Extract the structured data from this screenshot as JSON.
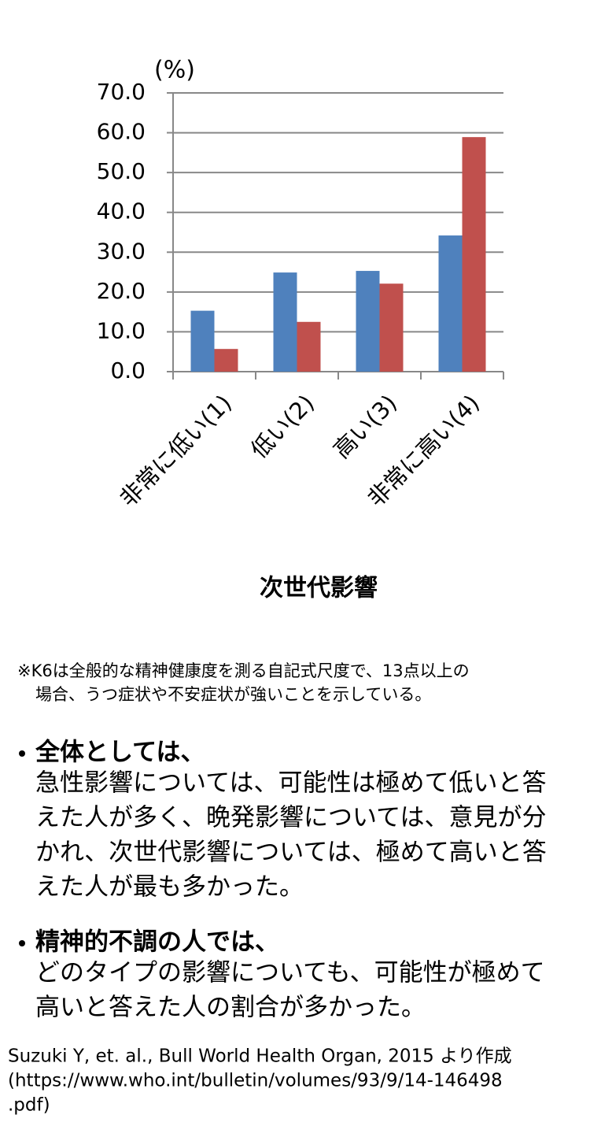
{
  "chart_data": {
    "type": "bar",
    "y_label": "(%)",
    "x_label": "次世代影響",
    "categories": [
      "非常に低い(1)",
      "低い(2)",
      "高い(3)",
      "非常に高い(4)"
    ],
    "series": [
      {
        "color": "#4f81bd",
        "values": [
          15.3,
          24.9,
          25.3,
          34.2
        ]
      },
      {
        "color": "#c0504d",
        "values": [
          5.7,
          12.5,
          22.1,
          58.9
        ]
      }
    ],
    "ylim": [
      0,
      70
    ],
    "yticks": [
      {
        "value": 0,
        "label": "0.0"
      },
      {
        "value": 10,
        "label": "10.0"
      },
      {
        "value": 20,
        "label": "20.0"
      },
      {
        "value": 30,
        "label": "30.0"
      },
      {
        "value": 40,
        "label": "40.0"
      },
      {
        "value": 50,
        "label": "50.0"
      },
      {
        "value": 60,
        "label": "60.0"
      },
      {
        "value": 70,
        "label": "70.0"
      }
    ],
    "grid": true
  },
  "note": {
    "lines": [
      "※K6は全般的な精神健康度を測る自記式尺度で、13点以上の",
      "場合、うつ症状や不安症状が強いことを示している。"
    ]
  },
  "bullets": [
    {
      "heading": "全体としては、",
      "lines": [
        "急性影響については、可能性は極めて低いと答",
        "えた人が多く、晩発影響については、意見が分",
        "かれ、次世代影響については、極めて高いと答",
        "えた人が最も多かった。"
      ]
    },
    {
      "heading": "精神的不調の人では、",
      "lines": [
        "どのタイプの影響についても、可能性が極めて",
        "高いと答えた人の割合が多かった。"
      ]
    }
  ],
  "source": {
    "lines": [
      "Suzuki Y,  et. al., Bull World Health Organ, 2015 より作成",
      "(https://www.who.int/bulletin/volumes/93/9/14-146498",
      ".pdf)"
    ]
  }
}
